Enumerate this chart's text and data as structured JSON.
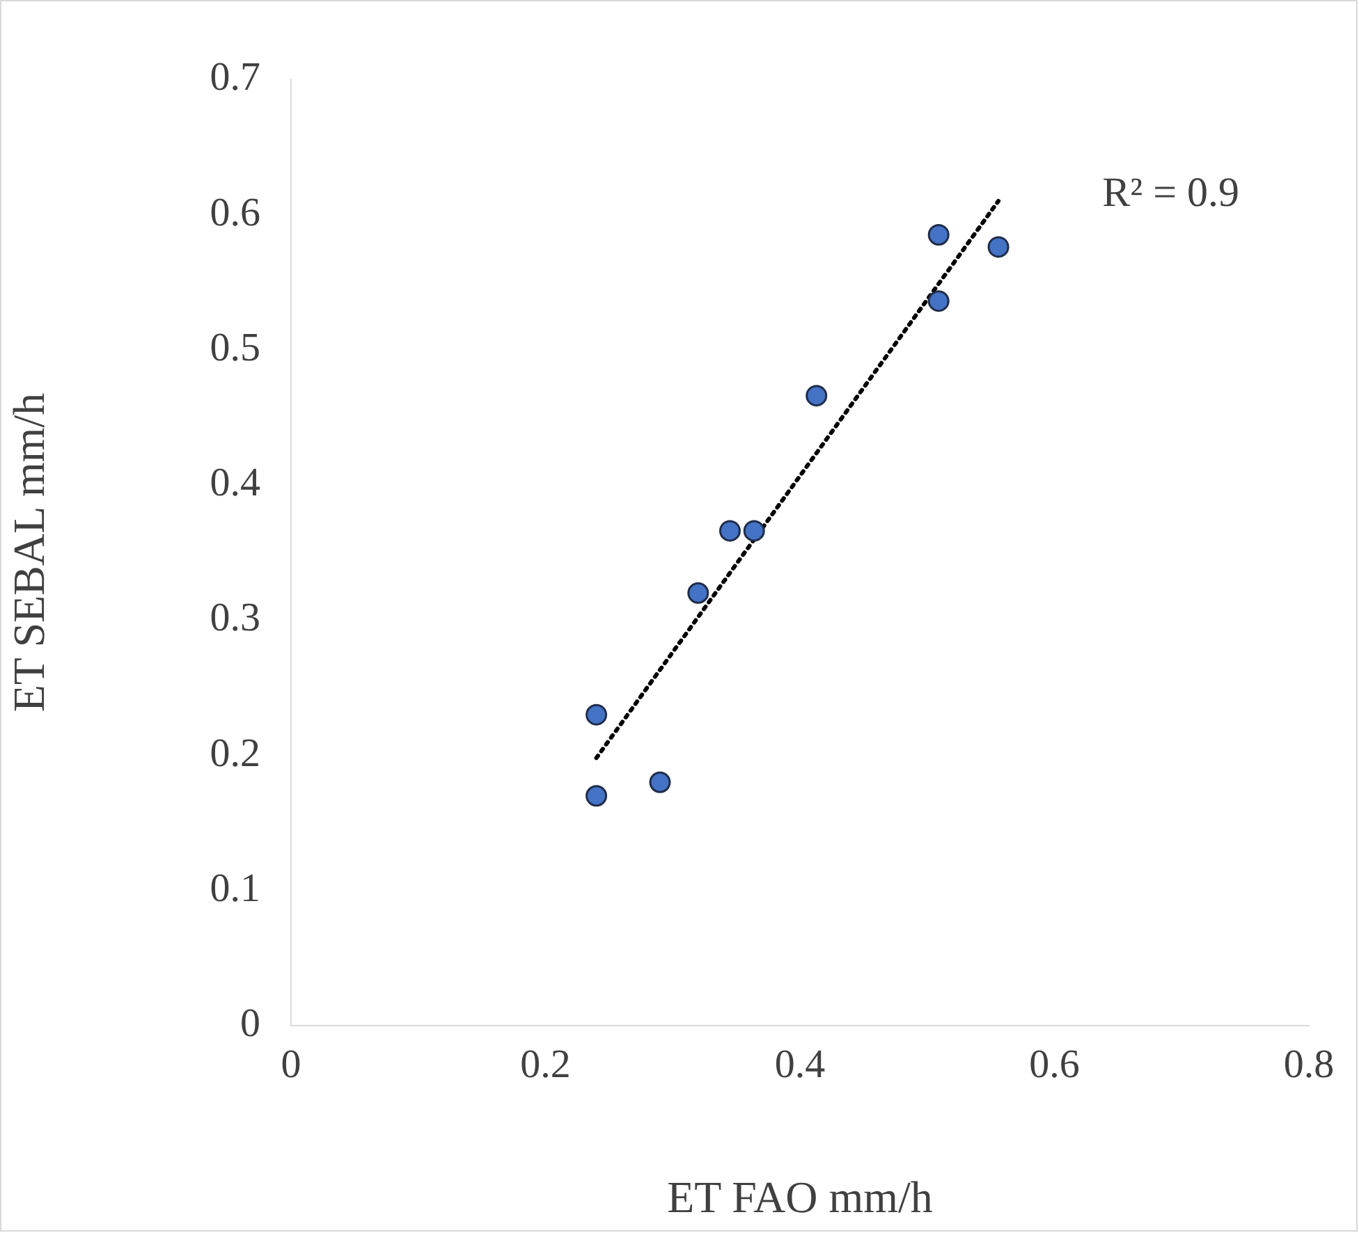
{
  "chart_data": {
    "type": "scatter",
    "xlabel": "ET FAO mm/h",
    "ylabel": "ET SEBAL mm/h",
    "xlim": [
      0,
      0.8
    ],
    "xticks": [
      0,
      0.2,
      0.4,
      0.6,
      0.8
    ],
    "ylim": [
      0,
      0.7
    ],
    "yticks": [
      0,
      0.1,
      0.2,
      0.3,
      0.4,
      0.5,
      0.6,
      0.7
    ],
    "grid": false,
    "marker": "circle",
    "series": [
      {
        "color": "#4472c4",
        "x": [
          0.24,
          0.24,
          0.29,
          0.32,
          0.345,
          0.364,
          0.413,
          0.509,
          0.509,
          0.556
        ],
        "values": [
          0.23,
          0.17,
          0.18,
          0.32,
          0.366,
          0.366,
          0.466,
          0.536,
          0.585,
          0.576
        ]
      },
      {
        "type": "line",
        "color": "#000000",
        "marker": "none",
        "line_style": "dotted",
        "x": [
          0.24,
          0.556
        ],
        "values": [
          0.198,
          0.61
        ]
      }
    ],
    "annotations": [
      "R² = 0.9"
    ]
  }
}
